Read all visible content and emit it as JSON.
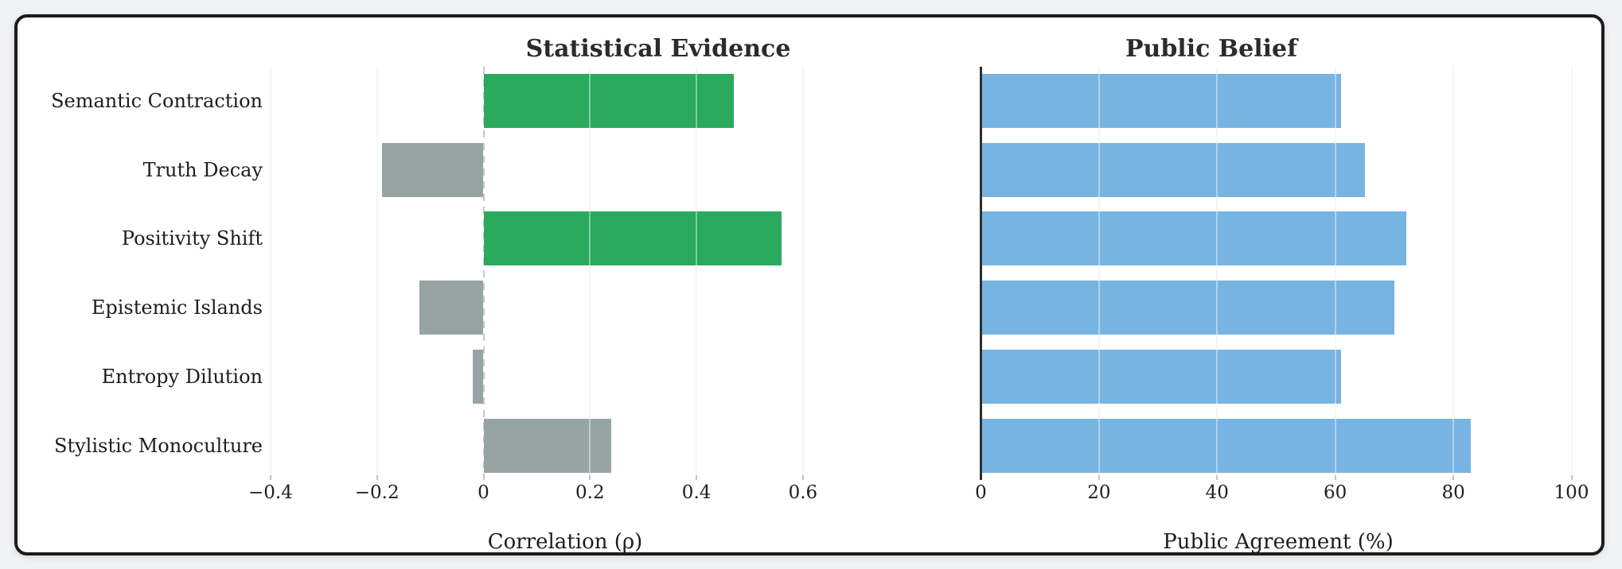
{
  "page": {
    "background_color": "#f1f2f4",
    "card_background": "#ffffff",
    "card_border_color": "#1b1b1b"
  },
  "chart_data": [
    {
      "type": "bar",
      "orientation": "horizontal",
      "title": "Statistical Evidence",
      "xlabel": "Correlation (ρ)",
      "categories": [
        "Semantic Contraction",
        "Truth Decay",
        "Positivity Shift",
        "Epistemic Islands",
        "Entropy Dilution",
        "Stylistic Monoculture"
      ],
      "values": [
        0.47,
        -0.19,
        0.56,
        -0.12,
        -0.02,
        0.24
      ],
      "bar_colors": [
        "#2baa5e",
        "#96a5a4",
        "#2baa5e",
        "#96a5a4",
        "#96a5a4",
        "#96a5a4"
      ],
      "xlim": [
        -0.45,
        0.69
      ],
      "ticks": [
        -0.4,
        -0.2,
        0,
        0.2,
        0.4,
        0.6
      ],
      "tick_labels": [
        "−0.4",
        "−0.2",
        "0",
        "0.2",
        "0.4",
        "0.6"
      ],
      "grid": true,
      "zero_line_style": "dashed",
      "show_category_labels": true
    },
    {
      "type": "bar",
      "orientation": "horizontal",
      "title": "Public Belief",
      "xlabel": "Public Agreement (%)",
      "categories": [
        "Semantic Contraction",
        "Truth Decay",
        "Positivity Shift",
        "Epistemic Islands",
        "Entropy Dilution",
        "Stylistic Monoculture"
      ],
      "values": [
        61,
        65,
        72,
        70,
        61,
        83
      ],
      "bar_colors": [
        "#77b4e2",
        "#77b4e2",
        "#77b4e2",
        "#77b4e2",
        "#77b4e2",
        "#77b4e2"
      ],
      "xlim": [
        0,
        102.5
      ],
      "ticks": [
        0,
        20,
        40,
        60,
        80,
        100
      ],
      "tick_labels": [
        "0",
        "20",
        "40",
        "60",
        "80",
        "100"
      ],
      "grid": true,
      "left_spine": true,
      "show_category_labels": false
    }
  ]
}
